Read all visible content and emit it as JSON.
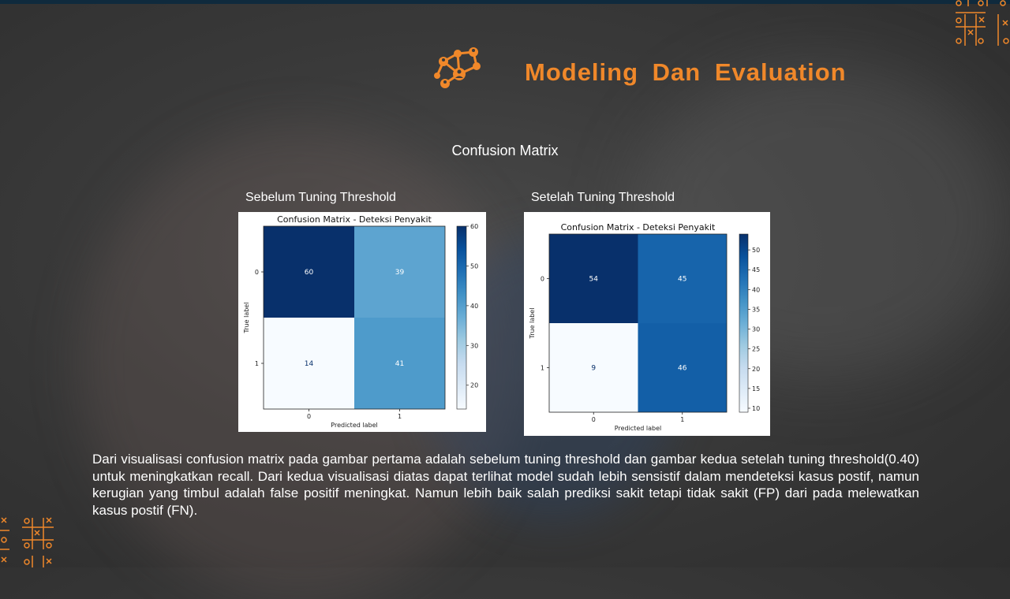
{
  "slide": {
    "title": "Modeling  Dan  Evaluation",
    "subtitle": "Confusion Matrix",
    "left_label": "Sebelum Tuning Threshold",
    "right_label": "Setelah Tuning Threshold",
    "description": "Dari visualisasi confusion matrix pada gambar pertama adalah sebelum tuning threshold dan gambar kedua setelah tuning threshold(0.40) untuk meningkatkan recall. Dari kedua visualisasi diatas dapat terlihat model sudah lebih sensistif dalam mendeteksi kasus postif, namun kerugian yang timbul adalah false positif meningkat. Namun lebih baik salah prediksi sakit tetapi tidak sakit (FP) dari pada melewatkan kasus postif (FN).",
    "icon": "network-people-icon",
    "accent_color": "#f0882a"
  },
  "chart_data": [
    {
      "type": "heatmap",
      "title": "Confusion Matrix - Deteksi Penyakit",
      "xlabel": "Predicted label",
      "ylabel": "True label",
      "x_ticks": [
        "0",
        "1"
      ],
      "y_ticks": [
        "0",
        "1"
      ],
      "matrix": [
        [
          60,
          39
        ],
        [
          14,
          41
        ]
      ],
      "colormap": "Blues",
      "colorbar_ticks": [
        20,
        30,
        40,
        50,
        60
      ],
      "colorbar_range": [
        14,
        60
      ]
    },
    {
      "type": "heatmap",
      "title": "Confusion Matrix - Deteksi Penyakit",
      "xlabel": "Predicted label",
      "ylabel": "True label",
      "x_ticks": [
        "0",
        "1"
      ],
      "y_ticks": [
        "0",
        "1"
      ],
      "matrix": [
        [
          54,
          45
        ],
        [
          9,
          46
        ]
      ],
      "colormap": "Blues",
      "colorbar_ticks": [
        10,
        15,
        20,
        25,
        30,
        35,
        40,
        45,
        50
      ],
      "colorbar_range": [
        9,
        54
      ]
    }
  ]
}
